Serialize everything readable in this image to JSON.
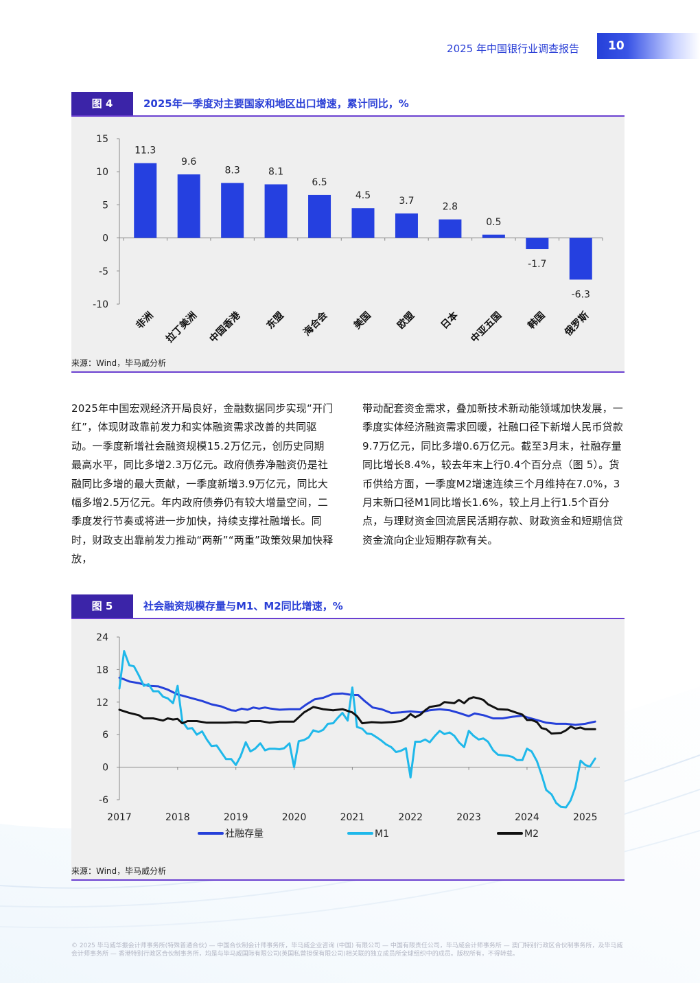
{
  "header": {
    "report_title": "2025 年中国银行业调查报告",
    "page_number": "10"
  },
  "figure4": {
    "tag": "图 4",
    "title": "2025年一季度对主要国家和地区出口增速，累计同比，%",
    "source": "来源：Wind，毕马威分析",
    "chart_data": {
      "type": "bar",
      "categories": [
        "非洲",
        "拉丁美洲",
        "中国香港",
        "东盟",
        "海合会",
        "美国",
        "欧盟",
        "日本",
        "中亚五国",
        "韩国",
        "俄罗斯"
      ],
      "values": [
        11.3,
        9.6,
        8.3,
        8.1,
        6.5,
        4.5,
        3.7,
        2.8,
        0.5,
        -1.7,
        -6.3
      ],
      "data_labels": [
        "11.3",
        "9.6",
        "8.3",
        "8.1",
        "6.5",
        "4.5",
        "3.7",
        "2.8",
        "0.5",
        "-1.7",
        "-6.3"
      ],
      "yticks": [
        "15",
        "10",
        "5",
        "0",
        "-5",
        "-10"
      ],
      "ylim": [
        -10,
        15
      ],
      "bar_color": "#2540e0",
      "grid": false
    }
  },
  "body_text": {
    "left": "2025年中国宏观经济开局良好，金融数据同步实现“开门红”，体现财政靠前发力和实体融资需求改善的共同驱动。一季度新增社会融资规模15.2万亿元，创历史同期最高水平，同比多增2.3万亿元。政府债券净融资仍是社融同比多增的最大贡献，一季度新增3.9万亿元，同比大幅多增2.5万亿元。年内政府债券仍有较大增量空间，二季度发行节奏或将进一步加快，持续支撑社融增长。同时，财政支出靠前发力推动“两新”“两重”政策效果加快释放，",
    "right": "带动配套资金需求，叠加新技术新动能领域加快发展，一季度实体经济融资需求回暖，社融口径下新增人民币贷款9.7万亿元，同比多增0.6万亿元。截至3月末，社融存量同比增长8.4%，较去年末上行0.4个百分点（图 5）。货币供给方面，一季度M2增速连续三个月维持在7.0%，3月末新口径M1同比增长1.6%，较上月上行1.5个百分点，与理财资金回流居民活期存款、财政资金和短期信贷资金流向企业短期存款有关。"
  },
  "figure5": {
    "tag": "图 5",
    "title": "社会融资规模存量与M1、M2同比增速，%",
    "source": "来源：Wind，毕马威分析",
    "chart_data": {
      "type": "line",
      "x_ticks": [
        "2017",
        "2018",
        "2019",
        "2020",
        "2021",
        "2022",
        "2023",
        "2024",
        "2025"
      ],
      "yticks": [
        "24",
        "18",
        "12",
        "6",
        "0",
        "-6"
      ],
      "ylim": [
        -6,
        24
      ],
      "xlim": [
        2017.0,
        2025.25
      ],
      "grid": false,
      "legend_position": "bottom",
      "series": [
        {
          "name": "社融存量",
          "color": "#2540d9",
          "points": [
            [
              2017.0,
              16.5
            ],
            [
              2017.08,
              16.2
            ],
            [
              2017.17,
              15.8
            ],
            [
              2017.33,
              15.5
            ],
            [
              2017.5,
              15.0
            ],
            [
              2017.67,
              14.9
            ],
            [
              2017.83,
              14.3
            ],
            [
              2018.0,
              13.4
            ],
            [
              2018.08,
              13.2
            ],
            [
              2018.25,
              12.7
            ],
            [
              2018.42,
              12.2
            ],
            [
              2018.58,
              11.6
            ],
            [
              2018.75,
              11.2
            ],
            [
              2018.92,
              10.5
            ],
            [
              2019.0,
              10.4
            ],
            [
              2019.1,
              10.8
            ],
            [
              2019.2,
              10.6
            ],
            [
              2019.3,
              11.0
            ],
            [
              2019.4,
              10.8
            ],
            [
              2019.5,
              11.0
            ],
            [
              2019.6,
              10.8
            ],
            [
              2019.75,
              10.6
            ],
            [
              2019.92,
              10.7
            ],
            [
              2020.0,
              10.7
            ],
            [
              2020.1,
              10.7
            ],
            [
              2020.2,
              11.5
            ],
            [
              2020.35,
              12.5
            ],
            [
              2020.5,
              12.8
            ],
            [
              2020.67,
              13.5
            ],
            [
              2020.83,
              13.6
            ],
            [
              2021.0,
              13.3
            ],
            [
              2021.1,
              13.3
            ],
            [
              2021.2,
              12.3
            ],
            [
              2021.35,
              11.0
            ],
            [
              2021.5,
              10.7
            ],
            [
              2021.67,
              10.0
            ],
            [
              2021.83,
              10.1
            ],
            [
              2022.0,
              10.3
            ],
            [
              2022.17,
              10.1
            ],
            [
              2022.33,
              10.5
            ],
            [
              2022.5,
              10.7
            ],
            [
              2022.67,
              10.5
            ],
            [
              2022.83,
              10.0
            ],
            [
              2023.0,
              9.4
            ],
            [
              2023.1,
              9.9
            ],
            [
              2023.25,
              9.6
            ],
            [
              2023.42,
              9.0
            ],
            [
              2023.58,
              9.0
            ],
            [
              2023.75,
              9.3
            ],
            [
              2023.92,
              9.5
            ],
            [
              2024.0,
              9.2
            ],
            [
              2024.17,
              8.7
            ],
            [
              2024.33,
              8.2
            ],
            [
              2024.5,
              8.0
            ],
            [
              2024.67,
              8.0
            ],
            [
              2024.83,
              7.8
            ],
            [
              2025.0,
              8.0
            ],
            [
              2025.17,
              8.4
            ]
          ]
        },
        {
          "name": "M1",
          "color": "#1fb8ea",
          "points": [
            [
              2017.0,
              14.5
            ],
            [
              2017.08,
              21.4
            ],
            [
              2017.17,
              18.8
            ],
            [
              2017.25,
              18.6
            ],
            [
              2017.33,
              17.0
            ],
            [
              2017.42,
              15.0
            ],
            [
              2017.5,
              15.3
            ],
            [
              2017.58,
              14.0
            ],
            [
              2017.67,
              14.0
            ],
            [
              2017.75,
              13.0
            ],
            [
              2017.83,
              12.7
            ],
            [
              2017.92,
              11.8
            ],
            [
              2018.0,
              15.0
            ],
            [
              2018.08,
              8.5
            ],
            [
              2018.17,
              7.1
            ],
            [
              2018.25,
              7.2
            ],
            [
              2018.33,
              6.0
            ],
            [
              2018.42,
              6.6
            ],
            [
              2018.5,
              5.1
            ],
            [
              2018.58,
              3.9
            ],
            [
              2018.67,
              4.0
            ],
            [
              2018.83,
              1.5
            ],
            [
              2018.92,
              1.5
            ],
            [
              2019.0,
              0.4
            ],
            [
              2019.08,
              2.0
            ],
            [
              2019.17,
              4.6
            ],
            [
              2019.25,
              2.9
            ],
            [
              2019.33,
              3.4
            ],
            [
              2019.42,
              4.4
            ],
            [
              2019.5,
              3.1
            ],
            [
              2019.58,
              3.4
            ],
            [
              2019.67,
              3.4
            ],
            [
              2019.75,
              3.3
            ],
            [
              2019.83,
              3.5
            ],
            [
              2019.92,
              4.4
            ],
            [
              2020.0,
              0.0
            ],
            [
              2020.08,
              4.8
            ],
            [
              2020.17,
              5.0
            ],
            [
              2020.25,
              5.5
            ],
            [
              2020.33,
              6.8
            ],
            [
              2020.42,
              6.5
            ],
            [
              2020.5,
              6.9
            ],
            [
              2020.58,
              8.0
            ],
            [
              2020.67,
              8.1
            ],
            [
              2020.75,
              9.1
            ],
            [
              2020.83,
              10.0
            ],
            [
              2020.92,
              8.6
            ],
            [
              2021.0,
              14.7
            ],
            [
              2021.08,
              7.4
            ],
            [
              2021.17,
              7.1
            ],
            [
              2021.25,
              6.2
            ],
            [
              2021.33,
              6.1
            ],
            [
              2021.42,
              5.5
            ],
            [
              2021.5,
              4.9
            ],
            [
              2021.58,
              4.2
            ],
            [
              2021.67,
              3.7
            ],
            [
              2021.75,
              2.8
            ],
            [
              2021.83,
              3.0
            ],
            [
              2021.92,
              3.5
            ],
            [
              2022.0,
              -1.9
            ],
            [
              2022.08,
              4.7
            ],
            [
              2022.17,
              4.7
            ],
            [
              2022.25,
              5.1
            ],
            [
              2022.33,
              4.6
            ],
            [
              2022.42,
              5.8
            ],
            [
              2022.5,
              6.7
            ],
            [
              2022.58,
              6.1
            ],
            [
              2022.67,
              6.4
            ],
            [
              2022.75,
              5.8
            ],
            [
              2022.83,
              4.6
            ],
            [
              2022.92,
              3.7
            ],
            [
              2023.0,
              6.7
            ],
            [
              2023.08,
              5.8
            ],
            [
              2023.17,
              5.1
            ],
            [
              2023.25,
              5.3
            ],
            [
              2023.33,
              4.7
            ],
            [
              2023.42,
              3.1
            ],
            [
              2023.5,
              2.3
            ],
            [
              2023.58,
              2.2
            ],
            [
              2023.67,
              2.1
            ],
            [
              2023.75,
              1.9
            ],
            [
              2023.83,
              1.3
            ],
            [
              2023.92,
              1.3
            ],
            [
              2024.0,
              3.4
            ],
            [
              2024.08,
              2.9
            ],
            [
              2024.17,
              1.1
            ],
            [
              2024.25,
              -1.4
            ],
            [
              2024.33,
              -4.2
            ],
            [
              2024.42,
              -5.0
            ],
            [
              2024.5,
              -6.6
            ],
            [
              2024.58,
              -7.3
            ],
            [
              2024.67,
              -7.4
            ],
            [
              2024.75,
              -6.1
            ],
            [
              2024.83,
              -3.7
            ],
            [
              2024.92,
              1.2
            ],
            [
              2025.0,
              0.4
            ],
            [
              2025.08,
              0.1
            ],
            [
              2025.17,
              1.6
            ]
          ]
        },
        {
          "name": "M2",
          "color": "#111111",
          "points": [
            [
              2017.0,
              10.6
            ],
            [
              2017.17,
              10.0
            ],
            [
              2017.33,
              9.6
            ],
            [
              2017.42,
              9.0
            ],
            [
              2017.58,
              9.0
            ],
            [
              2017.75,
              8.6
            ],
            [
              2017.83,
              9.0
            ],
            [
              2017.92,
              8.8
            ],
            [
              2018.0,
              8.9
            ],
            [
              2018.08,
              8.1
            ],
            [
              2018.17,
              8.5
            ],
            [
              2018.33,
              8.5
            ],
            [
              2018.5,
              8.2
            ],
            [
              2018.67,
              8.2
            ],
            [
              2018.83,
              8.2
            ],
            [
              2019.0,
              8.3
            ],
            [
              2019.17,
              8.2
            ],
            [
              2019.25,
              8.5
            ],
            [
              2019.42,
              8.5
            ],
            [
              2019.58,
              8.2
            ],
            [
              2019.75,
              8.4
            ],
            [
              2019.92,
              8.4
            ],
            [
              2020.0,
              8.4
            ],
            [
              2020.17,
              10.1
            ],
            [
              2020.33,
              11.1
            ],
            [
              2020.5,
              10.7
            ],
            [
              2020.67,
              10.5
            ],
            [
              2020.83,
              10.7
            ],
            [
              2021.0,
              10.1
            ],
            [
              2021.08,
              9.4
            ],
            [
              2021.17,
              8.1
            ],
            [
              2021.33,
              8.3
            ],
            [
              2021.5,
              8.2
            ],
            [
              2021.67,
              8.3
            ],
            [
              2021.83,
              8.5
            ],
            [
              2021.92,
              9.0
            ],
            [
              2022.0,
              9.8
            ],
            [
              2022.08,
              9.2
            ],
            [
              2022.17,
              9.7
            ],
            [
              2022.25,
              10.5
            ],
            [
              2022.33,
              11.1
            ],
            [
              2022.5,
              11.4
            ],
            [
              2022.58,
              12.0
            ],
            [
              2022.75,
              11.8
            ],
            [
              2022.83,
              12.4
            ],
            [
              2022.92,
              11.8
            ],
            [
              2023.0,
              12.6
            ],
            [
              2023.08,
              12.9
            ],
            [
              2023.17,
              12.7
            ],
            [
              2023.25,
              12.4
            ],
            [
              2023.33,
              11.6
            ],
            [
              2023.5,
              10.7
            ],
            [
              2023.67,
              10.6
            ],
            [
              2023.83,
              10.0
            ],
            [
              2023.92,
              9.7
            ],
            [
              2024.0,
              8.7
            ],
            [
              2024.08,
              8.7
            ],
            [
              2024.17,
              8.3
            ],
            [
              2024.25,
              7.2
            ],
            [
              2024.33,
              7.0
            ],
            [
              2024.42,
              6.2
            ],
            [
              2024.58,
              6.3
            ],
            [
              2024.67,
              6.8
            ],
            [
              2024.75,
              7.5
            ],
            [
              2024.83,
              7.1
            ],
            [
              2024.92,
              7.3
            ],
            [
              2025.0,
              7.0
            ],
            [
              2025.17,
              7.0
            ]
          ]
        }
      ]
    }
  },
  "footer": {
    "text": "© 2025 毕马威华振会计师事务所(特殊普通合伙) — 中国合伙制会计师事务所，毕马威企业咨询 (中国) 有限公司 — 中国有限责任公司，毕马威会计师事务所 — 澳门特别行政区合伙制事务所，及毕马威会计师事务所 — 香港特别行政区合伙制事务所，均是与毕马威国际有限公司(英国私营担保有限公司)相关联的独立成员所全球组织中的成员。版权所有，不得转载。"
  }
}
